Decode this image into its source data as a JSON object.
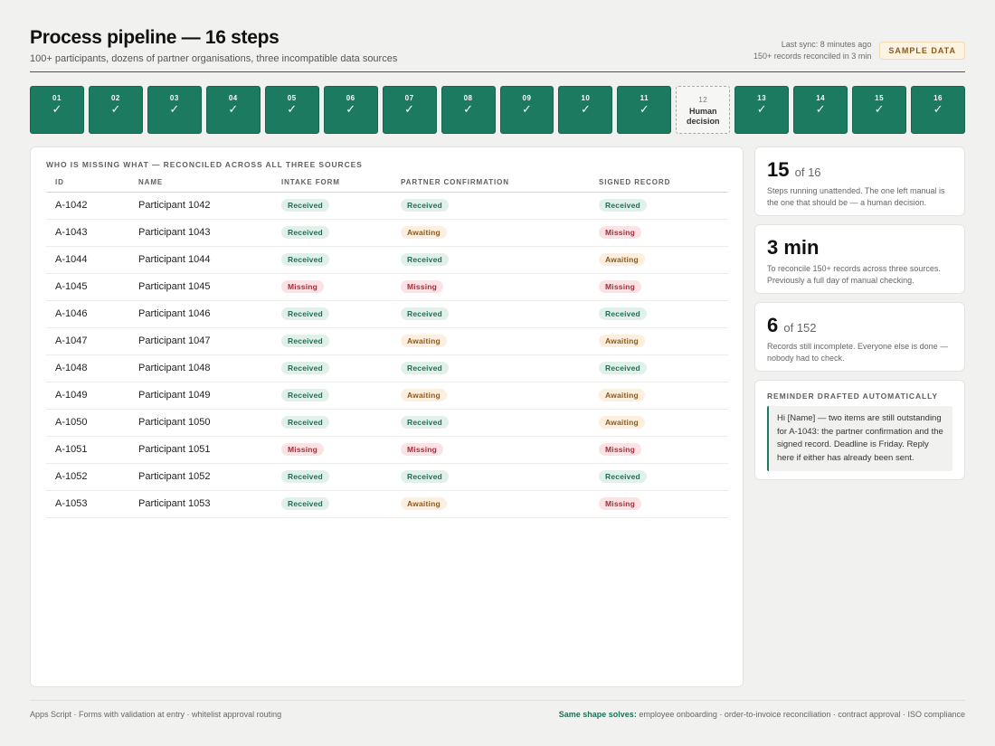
{
  "header": {
    "title": "Process pipeline — 16 steps",
    "subtitle": "100+ participants, dozens of partner organisations, three incompatible data sources",
    "sync_line1": "Last sync: 8 minutes ago",
    "sync_line2": "150+ records reconciled in 3 min",
    "badge": "SAMPLE DATA"
  },
  "pipeline": {
    "steps": [
      {
        "num": "01",
        "status": "done"
      },
      {
        "num": "02",
        "status": "done"
      },
      {
        "num": "03",
        "status": "done"
      },
      {
        "num": "04",
        "status": "done"
      },
      {
        "num": "05",
        "status": "done"
      },
      {
        "num": "06",
        "status": "done"
      },
      {
        "num": "07",
        "status": "done"
      },
      {
        "num": "08",
        "status": "done"
      },
      {
        "num": "09",
        "status": "done"
      },
      {
        "num": "10",
        "status": "done"
      },
      {
        "num": "11",
        "status": "done"
      },
      {
        "num": "12",
        "status": "manual",
        "label": "Human decision"
      },
      {
        "num": "13",
        "status": "done"
      },
      {
        "num": "14",
        "status": "done"
      },
      {
        "num": "15",
        "status": "done"
      },
      {
        "num": "16",
        "status": "done"
      }
    ],
    "check_icon": "checkmark-icon"
  },
  "table": {
    "heading": "WHO IS MISSING WHAT — RECONCILED ACROSS ALL THREE SOURCES",
    "columns": [
      "ID",
      "NAME",
      "INTAKE FORM",
      "PARTNER CONFIRMATION",
      "SIGNED RECORD"
    ],
    "rows": [
      {
        "id": "A-1042",
        "name": "Participant 1042",
        "intake": "Received",
        "partner": "Received",
        "signed": "Received"
      },
      {
        "id": "A-1043",
        "name": "Participant 1043",
        "intake": "Received",
        "partner": "Awaiting",
        "signed": "Missing"
      },
      {
        "id": "A-1044",
        "name": "Participant 1044",
        "intake": "Received",
        "partner": "Received",
        "signed": "Awaiting"
      },
      {
        "id": "A-1045",
        "name": "Participant 1045",
        "intake": "Missing",
        "partner": "Missing",
        "signed": "Missing"
      },
      {
        "id": "A-1046",
        "name": "Participant 1046",
        "intake": "Received",
        "partner": "Received",
        "signed": "Received"
      },
      {
        "id": "A-1047",
        "name": "Participant 1047",
        "intake": "Received",
        "partner": "Awaiting",
        "signed": "Awaiting"
      },
      {
        "id": "A-1048",
        "name": "Participant 1048",
        "intake": "Received",
        "partner": "Received",
        "signed": "Received"
      },
      {
        "id": "A-1049",
        "name": "Participant 1049",
        "intake": "Received",
        "partner": "Awaiting",
        "signed": "Awaiting"
      },
      {
        "id": "A-1050",
        "name": "Participant 1050",
        "intake": "Received",
        "partner": "Received",
        "signed": "Awaiting"
      },
      {
        "id": "A-1051",
        "name": "Participant 1051",
        "intake": "Missing",
        "partner": "Missing",
        "signed": "Missing"
      },
      {
        "id": "A-1052",
        "name": "Participant 1052",
        "intake": "Received",
        "partner": "Received",
        "signed": "Received"
      },
      {
        "id": "A-1053",
        "name": "Participant 1053",
        "intake": "Received",
        "partner": "Awaiting",
        "signed": "Missing"
      }
    ]
  },
  "stats": {
    "steps": {
      "big": "15",
      "of": "of 16",
      "desc": "Steps running unattended. The one left manual is the one that should be — a human decision."
    },
    "time": {
      "big": "3 min",
      "desc": "To reconcile 150+ records across three sources. Previously a full day of manual checking."
    },
    "incomplete": {
      "big": "6",
      "of": "of 152",
      "desc": "Records still incomplete. Everyone else is done — nobody had to check."
    }
  },
  "reminder": {
    "title": "REMINDER DRAFTED AUTOMATICALLY",
    "body": "Hi [Name] — two items are still outstanding for A-1043: the partner confirmation and the signed record. Deadline is Friday. Reply here if either has already been sent."
  },
  "footer": {
    "left": "Apps Script · Forms with validation at entry · whitelist approval routing",
    "right_label": "Same shape solves:",
    "right_text": " employee onboarding · order-to-invoice reconciliation · contract approval · ISO compliance"
  },
  "colors": {
    "accent": "#1c7a61",
    "received": "#1f6e57",
    "awaiting": "#8b5a1a",
    "missing": "#a12e39",
    "background": "#f1f2f0"
  }
}
